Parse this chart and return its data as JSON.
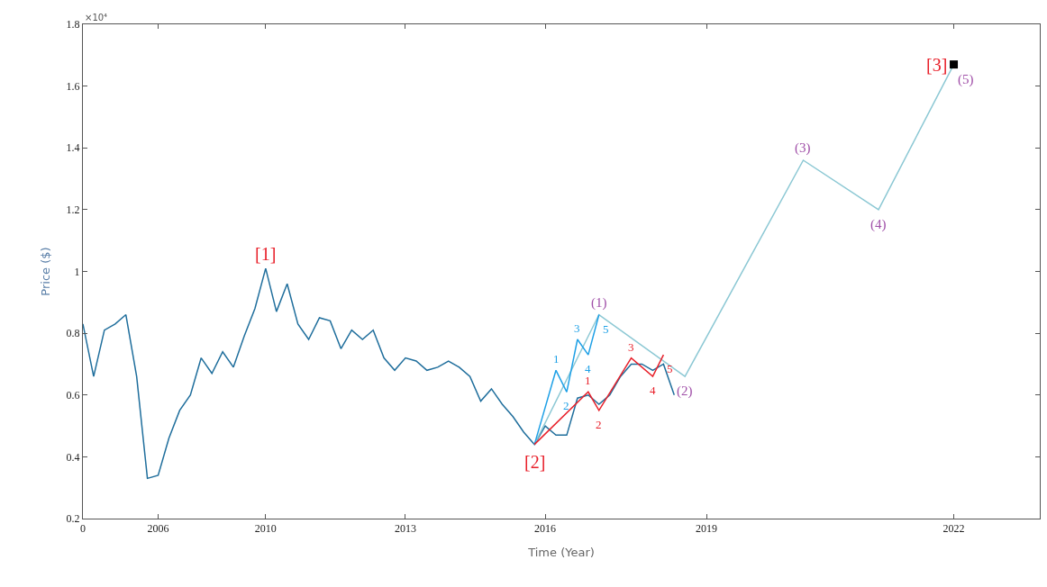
{
  "chart_data": {
    "type": "line",
    "xlabel": "Time (Year)",
    "ylabel": "Price ($)",
    "categories": [
      "0",
      null,
      null,
      null,
      null,
      null,
      null,
      "2006",
      null,
      null,
      null,
      null,
      null,
      null,
      null,
      null,
      null,
      "2010",
      null,
      null,
      null,
      null,
      null,
      null,
      null,
      null,
      null,
      null,
      null,
      null,
      "2013",
      null,
      null,
      null,
      null,
      null,
      null,
      null,
      null,
      null,
      null,
      null,
      null,
      "2016",
      null,
      null,
      null,
      null,
      null,
      null,
      null,
      null,
      null,
      null,
      null,
      null,
      null,
      null,
      "2019",
      null,
      null,
      null,
      null,
      null,
      null,
      null,
      null,
      null,
      null,
      null,
      null,
      null,
      null,
      null,
      null,
      null,
      null,
      null,
      null,
      null,
      null,
      "2022",
      null,
      null,
      null,
      null,
      null,
      null,
      null
    ],
    "ylim": [
      0.2,
      1.8
    ],
    "yticks": [
      0.2,
      0.4,
      0.6,
      0.8,
      1,
      1.2,
      1.4,
      1.6,
      1.8
    ],
    "series": [
      {
        "color": "#1f6e9c",
        "values": [
          0.83,
          0.66,
          0.81,
          0.83,
          0.86,
          0.66,
          0.33,
          0.34,
          0.46,
          0.55,
          0.6,
          0.72,
          0.67,
          0.74,
          0.69,
          0.79,
          0.88,
          1.01,
          0.87,
          0.96,
          0.83,
          0.78,
          0.85,
          0.84,
          0.75,
          0.81,
          0.78,
          0.81,
          0.72,
          0.68,
          0.72,
          0.71,
          0.68,
          0.69,
          0.71,
          0.69,
          0.66,
          0.58,
          0.62,
          0.57,
          0.53,
          0.48,
          0.44,
          0.5,
          0.47,
          0.47,
          0.59,
          0.6,
          0.57,
          0.6,
          0.66,
          0.7,
          0.7,
          0.68,
          0.7,
          0.6,
          null,
          null,
          null,
          null,
          null,
          null,
          null,
          null,
          null,
          null,
          null,
          null,
          null,
          null,
          null,
          null,
          null,
          null,
          null,
          null,
          null,
          null,
          null,
          null,
          null,
          null,
          null,
          null,
          null,
          null,
          null,
          null,
          null
        ]
      },
      {
        "color": "#8cc8d4",
        "values": [
          null,
          null,
          null,
          null,
          null,
          null,
          null,
          null,
          null,
          null,
          null,
          null,
          null,
          null,
          null,
          null,
          null,
          null,
          null,
          null,
          null,
          null,
          null,
          null,
          null,
          null,
          null,
          null,
          null,
          null,
          null,
          null,
          null,
          null,
          null,
          null,
          null,
          null,
          null,
          null,
          null,
          null,
          0.44,
          null,
          null,
          null,
          null,
          null,
          0.86,
          null,
          null,
          null,
          null,
          null,
          null,
          null,
          0.66,
          null,
          null,
          null,
          null,
          null,
          null,
          null,
          null,
          null,
          null,
          1.36,
          null,
          null,
          null,
          null,
          null,
          null,
          1.2,
          null,
          null,
          null,
          null,
          null,
          null,
          1.67,
          null,
          null,
          null,
          null,
          null,
          null,
          null
        ]
      },
      {
        "color": "#1ea0e6",
        "values": [
          null,
          null,
          null,
          null,
          null,
          null,
          null,
          null,
          null,
          null,
          null,
          null,
          null,
          null,
          null,
          null,
          null,
          null,
          null,
          null,
          null,
          null,
          null,
          null,
          null,
          null,
          null,
          null,
          null,
          null,
          null,
          null,
          null,
          null,
          null,
          null,
          null,
          null,
          null,
          null,
          null,
          null,
          0.44,
          null,
          0.68,
          0.61,
          0.78,
          0.73,
          0.86,
          null,
          null,
          null,
          null,
          null,
          null,
          null,
          null,
          null,
          null,
          null,
          null,
          null,
          null,
          null,
          null,
          null,
          null,
          null,
          null,
          null,
          null,
          null,
          null,
          null,
          null,
          null,
          null,
          null,
          null,
          null,
          null,
          null,
          null,
          null,
          null,
          null,
          null,
          null,
          null
        ]
      },
      {
        "color": "#e8202a",
        "values": [
          null,
          null,
          null,
          null,
          null,
          null,
          null,
          null,
          null,
          null,
          null,
          null,
          null,
          null,
          null,
          null,
          null,
          null,
          null,
          null,
          null,
          null,
          null,
          null,
          null,
          null,
          null,
          null,
          null,
          null,
          null,
          null,
          null,
          null,
          null,
          null,
          null,
          null,
          null,
          null,
          null,
          null,
          0.44,
          null,
          null,
          null,
          null,
          0.61,
          0.55,
          null,
          null,
          0.72,
          null,
          0.66,
          0.73,
          null,
          null,
          null,
          null,
          null,
          null,
          null,
          null,
          null,
          null,
          null,
          null,
          null,
          null,
          null,
          null,
          null,
          null,
          null,
          null,
          null,
          null,
          null,
          null,
          null,
          null,
          null,
          null,
          null,
          null,
          null,
          null,
          null,
          null
        ]
      },
      {
        "type": "scatter",
        "marker": "square",
        "color": "#000000",
        "values": [
          null,
          null,
          null,
          null,
          null,
          null,
          null,
          null,
          null,
          null,
          null,
          null,
          null,
          null,
          null,
          null,
          null,
          null,
          null,
          null,
          null,
          null,
          null,
          null,
          null,
          null,
          null,
          null,
          null,
          null,
          null,
          null,
          null,
          null,
          null,
          null,
          null,
          null,
          null,
          null,
          null,
          null,
          null,
          null,
          null,
          null,
          null,
          null,
          null,
          null,
          null,
          null,
          null,
          null,
          null,
          null,
          null,
          null,
          null,
          null,
          null,
          null,
          null,
          null,
          null,
          null,
          null,
          null,
          null,
          null,
          null,
          null,
          null,
          null,
          null,
          null,
          null,
          null,
          null,
          null,
          null,
          1.67,
          null,
          null,
          null,
          null,
          null,
          null,
          null
        ]
      }
    ],
    "annotations": [
      "[1]",
      "[2]",
      "[3]",
      "(1)",
      "(2)",
      "(3)",
      "(4)",
      "(5)",
      "1",
      "2",
      "3",
      "4",
      "5",
      "1",
      "2",
      "3",
      "4",
      "5",
      "×10⁴"
    ]
  }
}
